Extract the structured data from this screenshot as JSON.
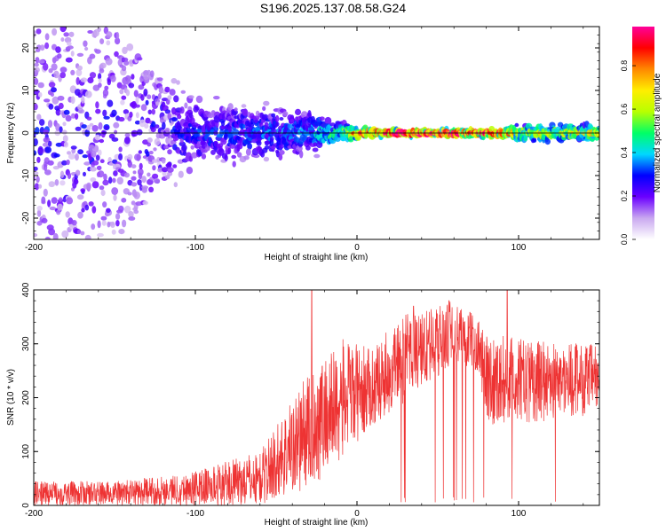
{
  "figure": {
    "title": "S196.2025.137.08.58.G24"
  },
  "chart_data": [
    {
      "type": "heatmap",
      "xlabel": "Height of straight line (km)",
      "ylabel": "Frequency (Hz)",
      "xlim": [
        -200,
        150
      ],
      "ylim": [
        -25,
        25
      ],
      "xticks": [
        -200,
        -100,
        0,
        100
      ],
      "yticks": [
        -20,
        -10,
        0,
        10,
        20
      ],
      "grid": false,
      "colorbar": {
        "label": "Normalized spectral amplitude",
        "range": [
          0.0,
          0.98
        ],
        "ticks": [
          0.0,
          0.2,
          0.4,
          0.6,
          0.8
        ],
        "colors": [
          "#ffffff",
          "#c9a8f0",
          "#6a00ff",
          "#0000ff",
          "#00d8ff",
          "#00ff66",
          "#b8ff00",
          "#ffee00",
          "#ff8800",
          "#ff0000",
          "#ff0099"
        ]
      },
      "profile": [
        {
          "x": -200,
          "spread": 25,
          "amp": 0.25
        },
        {
          "x": -150,
          "spread": 25,
          "amp": 0.25
        },
        {
          "x": -120,
          "spread": 12,
          "amp": 0.25
        },
        {
          "x": -100,
          "spread": 6,
          "amp": 0.28
        },
        {
          "x": -60,
          "spread": 5,
          "amp": 0.3
        },
        {
          "x": -30,
          "spread": 4,
          "amp": 0.35
        },
        {
          "x": -10,
          "spread": 2,
          "amp": 0.5
        },
        {
          "x": 0,
          "spread": 1.2,
          "amp": 0.7
        },
        {
          "x": 20,
          "spread": 0.6,
          "amp": 0.95
        },
        {
          "x": 80,
          "spread": 0.6,
          "amp": 0.95
        },
        {
          "x": 100,
          "spread": 1.5,
          "amp": 0.6
        },
        {
          "x": 150,
          "spread": 1.5,
          "amp": 0.6
        }
      ]
    },
    {
      "type": "line",
      "xlabel": "Height of straight line (km)",
      "ylabel": "SNR (10 * v/v)",
      "xlim": [
        -200,
        150
      ],
      "ylim": [
        0,
        400
      ],
      "xticks": [
        -200,
        -100,
        0,
        100
      ],
      "yticks": [
        0,
        100,
        200,
        300,
        400
      ],
      "grid": false,
      "series": [
        {
          "color": "#ee3333",
          "envelope": [
            {
              "x": -200,
              "lo": 0,
              "hi": 45
            },
            {
              "x": -150,
              "lo": 0,
              "hi": 45
            },
            {
              "x": -105,
              "lo": 0,
              "hi": 60
            },
            {
              "x": -60,
              "lo": 0,
              "hi": 100
            },
            {
              "x": -30,
              "lo": 30,
              "hi": 250
            },
            {
              "x": -10,
              "lo": 80,
              "hi": 310
            },
            {
              "x": 10,
              "lo": 150,
              "hi": 290
            },
            {
              "x": 25,
              "lo": 180,
              "hi": 350
            },
            {
              "x": 60,
              "lo": 260,
              "hi": 380
            },
            {
              "x": 75,
              "lo": 250,
              "hi": 350
            },
            {
              "x": 80,
              "lo": 150,
              "hi": 320
            },
            {
              "x": 100,
              "lo": 150,
              "hi": 310
            },
            {
              "x": 150,
              "lo": 170,
              "hi": 300
            }
          ],
          "peaks": [
            {
              "x": -28,
              "y": 400
            },
            {
              "x": 93,
              "y": 400
            },
            {
              "x": 57,
              "y": 380
            },
            {
              "x": 35,
              "y": 370
            }
          ]
        }
      ]
    }
  ]
}
